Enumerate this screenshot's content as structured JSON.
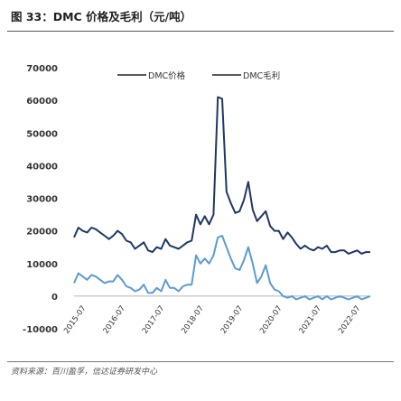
{
  "header": {
    "title": "图 33：DMC 价格及毛利（元/吨）"
  },
  "source": "资料来源：百川盈孚，信达证券研发中心",
  "colors": {
    "price": "#1f3864",
    "profit": "#5b9bd5",
    "axis": "#999999",
    "text": "#333333"
  },
  "chart_data": {
    "type": "line",
    "title": "",
    "xlabel": "",
    "ylabel": "",
    "ylim": [
      -10000,
      70000
    ],
    "yticks": [
      -10000,
      0,
      10000,
      20000,
      30000,
      40000,
      50000,
      60000,
      70000
    ],
    "ytick_labels": [
      "-10000",
      "0",
      "10000",
      "20000",
      "30000",
      "40000",
      "50000",
      "60000",
      "70000"
    ],
    "x_labels": [
      "2015-07",
      "2016-07",
      "2017-07",
      "2018-07",
      "2019-07",
      "2020-07",
      "2021-07",
      "2022-07"
    ],
    "x_label_positions": [
      1,
      10,
      19,
      28,
      37,
      46,
      55,
      64
    ],
    "x_count": 69,
    "legend_position": "top-right",
    "grid": false,
    "series": [
      {
        "name": "DMC价格",
        "color": "#1f3864",
        "values": [
          18000,
          21000,
          20000,
          19500,
          21000,
          20500,
          19500,
          18500,
          17500,
          18500,
          20000,
          19000,
          17000,
          16500,
          14500,
          15500,
          16500,
          14000,
          13500,
          15000,
          14500,
          17500,
          15500,
          15000,
          14500,
          15500,
          16500,
          17000,
          25000,
          22000,
          24500,
          22000,
          25000,
          61000,
          60500,
          32000,
          28500,
          25500,
          26000,
          29500,
          35000,
          26500,
          23000,
          24500,
          26000,
          21500,
          20000,
          20000,
          17500,
          19500,
          18000,
          16000,
          14500,
          15500,
          14500,
          14000,
          15000,
          14500,
          15500,
          13500,
          13500,
          14000,
          14000,
          13000,
          13500,
          14000,
          13000,
          13500,
          13500
        ]
      },
      {
        "name": "DMC毛利",
        "color": "#5b9bd5",
        "values": [
          4000,
          7000,
          6000,
          5000,
          6500,
          6000,
          5000,
          4000,
          4500,
          4500,
          6500,
          5000,
          3000,
          2500,
          1500,
          2000,
          3500,
          1000,
          1000,
          2500,
          1500,
          5000,
          2500,
          2500,
          1500,
          3000,
          3500,
          3500,
          12500,
          10000,
          11500,
          10000,
          12500,
          18000,
          18500,
          15000,
          11500,
          8500,
          8000,
          11000,
          15000,
          10000,
          4000,
          6000,
          9500,
          4000,
          2000,
          1500,
          0,
          -500,
          0,
          -1000,
          -500,
          0,
          -1000,
          -500,
          0,
          -1000,
          0,
          -1000,
          -500,
          0,
          -500,
          -1000,
          -500,
          0,
          -1000,
          -500,
          0
        ]
      }
    ]
  }
}
